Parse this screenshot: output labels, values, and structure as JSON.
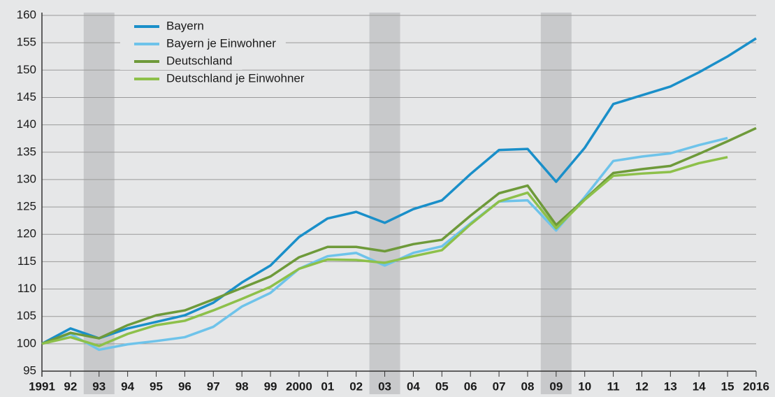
{
  "chart_data": {
    "type": "line",
    "categories": [
      "1991",
      "92",
      "93",
      "94",
      "95",
      "96",
      "97",
      "98",
      "99",
      "2000",
      "01",
      "02",
      "03",
      "04",
      "05",
      "06",
      "07",
      "08",
      "09",
      "10",
      "11",
      "12",
      "13",
      "14",
      "15",
      "2016"
    ],
    "series": [
      {
        "name": "Bayern",
        "color": "#1a8fc9",
        "values": [
          100,
          102.8,
          101,
          102.8,
          104,
          105.2,
          107.5,
          111.2,
          114.3,
          119.5,
          122.9,
          124.1,
          122.1,
          124.6,
          126.2,
          131,
          135.4,
          135.6,
          129.6,
          135.8,
          143.8,
          145.4,
          147,
          149.6,
          152.5,
          155.8
        ]
      },
      {
        "name": "Bayern je Einwohner",
        "color": "#6ec3ea",
        "values": [
          100,
          101.8,
          98.9,
          99.9,
          100.5,
          101.2,
          103.1,
          106.8,
          109.3,
          113.7,
          116,
          116.6,
          114.3,
          116.6,
          117.8,
          122,
          126,
          126.2,
          120.7,
          126.8,
          133.4,
          134.2,
          134.8,
          136.3,
          137.6,
          null
        ]
      },
      {
        "name": "Deutschland",
        "color": "#6e9a3a",
        "values": [
          100,
          102,
          101,
          103.4,
          105.2,
          106.1,
          108.1,
          110.2,
          112.3,
          115.8,
          117.7,
          117.7,
          116.9,
          118.2,
          119,
          123.4,
          127.5,
          128.9,
          121.7,
          126.4,
          131.2,
          131.9,
          132.5,
          134.7,
          137,
          139.4
        ]
      },
      {
        "name": "Deutschland je Einwohner",
        "color": "#8dc04a",
        "values": [
          100,
          101.2,
          99.6,
          101.8,
          103.4,
          104.2,
          106.1,
          108.2,
          110.4,
          113.7,
          115.4,
          115.3,
          114.8,
          116,
          117.1,
          121.8,
          126,
          127.6,
          121.1,
          126.3,
          130.7,
          131.1,
          131.4,
          133,
          134.1,
          null
        ]
      }
    ],
    "ylim": [
      95,
      160
    ],
    "yticks": [
      95,
      100,
      105,
      110,
      115,
      120,
      125,
      130,
      135,
      140,
      145,
      150,
      155,
      160
    ],
    "grid": true,
    "legend": "top-left",
    "shaded_indices": [
      2,
      12,
      18
    ]
  }
}
